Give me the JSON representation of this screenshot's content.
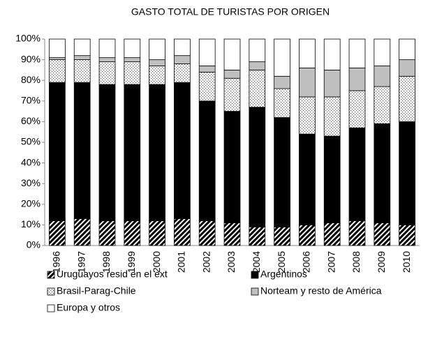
{
  "chart_data": {
    "type": "stacked_bar",
    "title": "GASTO TOTAL DE TURISTAS POR ORIGEN",
    "categories": [
      "1996",
      "1997",
      "1998",
      "1999",
      "2000",
      "2001",
      "2002",
      "2003",
      "2004",
      "2005",
      "2006",
      "2007",
      "2008",
      "2009",
      "2010"
    ],
    "series": [
      {
        "name": "Uruguayos resid en el ext",
        "color": "#000000",
        "pattern": "hatch",
        "values": [
          12,
          13,
          12,
          12,
          12,
          13,
          12,
          11,
          9,
          9,
          10,
          11,
          12,
          11,
          10
        ]
      },
      {
        "name": "Argentinos",
        "color": "#000000",
        "values": [
          67,
          66,
          66,
          66,
          66,
          66,
          58,
          54,
          58,
          53,
          44,
          42,
          45,
          48,
          50
        ]
      },
      {
        "name": "Brasil-Parag-Chile",
        "color": "#ffffff",
        "pattern": "dots",
        "values": [
          11,
          11,
          11,
          11,
          9,
          9,
          14,
          16,
          18,
          14,
          18,
          19,
          18,
          18,
          22
        ]
      },
      {
        "name": "Norteam y resto de América",
        "color": "#bfbfbf",
        "values": [
          1,
          2,
          2,
          2,
          3,
          4,
          3,
          4,
          4,
          6,
          14,
          13,
          11,
          10,
          8
        ]
      },
      {
        "name": "Europa y otros",
        "color": "#ffffff",
        "values": [
          9,
          8,
          9,
          9,
          10,
          8,
          13,
          15,
          11,
          18,
          14,
          15,
          14,
          13,
          10
        ]
      }
    ],
    "ylim": [
      0,
      100
    ],
    "yticks": [
      {
        "value": 0,
        "label": "0%"
      },
      {
        "value": 10,
        "label": "10%"
      },
      {
        "value": 20,
        "label": "20%"
      },
      {
        "value": 30,
        "label": "30%"
      },
      {
        "value": 40,
        "label": "40%"
      },
      {
        "value": 50,
        "label": "50%"
      },
      {
        "value": 60,
        "label": "60%"
      },
      {
        "value": 70,
        "label": "70%"
      },
      {
        "value": 80,
        "label": "80%"
      },
      {
        "value": 90,
        "label": "90%"
      },
      {
        "value": 100,
        "label": "100%"
      }
    ],
    "grid": false
  }
}
